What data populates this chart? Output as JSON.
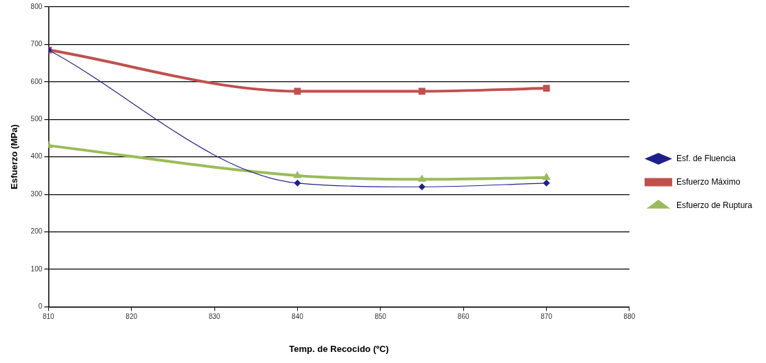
{
  "chart_data": {
    "type": "line",
    "xlabel": "Temp. de Recocido (ºC)",
    "ylabel": "Esfuerzo (MPa)",
    "x": [
      810,
      840,
      855,
      870
    ],
    "series": [
      {
        "name": "Esf. de Fluencia",
        "color": "#1f1f8c",
        "marker": "diamond",
        "values": [
          685,
          330,
          320,
          330
        ]
      },
      {
        "name": "Esfuerzo Máximo",
        "color": "#c0504d",
        "marker": "square",
        "values": [
          685,
          575,
          575,
          583
        ]
      },
      {
        "name": "Esfuerzo de Ruptura",
        "color": "#9bbb59",
        "marker": "triangle",
        "values": [
          430,
          350,
          340,
          345
        ]
      }
    ],
    "xlim": [
      810,
      880
    ],
    "xticks": [
      810,
      820,
      830,
      840,
      850,
      860,
      870,
      880
    ],
    "ylim": [
      0,
      800
    ],
    "yticks": [
      0,
      100,
      200,
      300,
      400,
      500,
      600,
      700,
      800
    ],
    "grid": "y",
    "legend": "right"
  }
}
